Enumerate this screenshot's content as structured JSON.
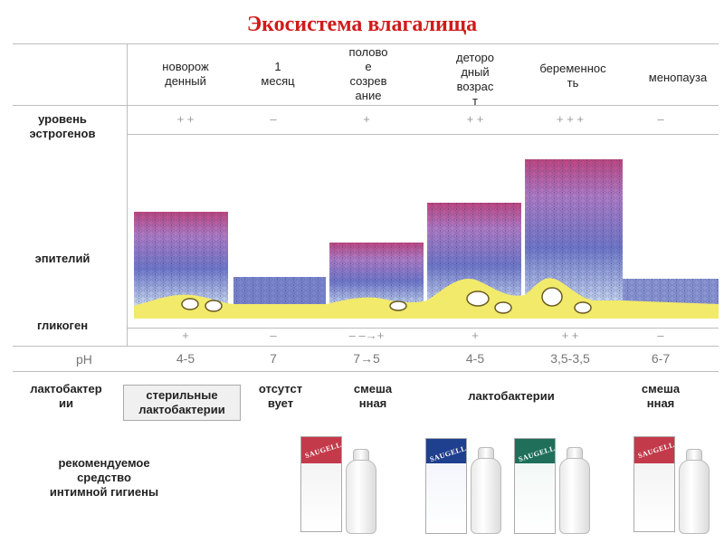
{
  "title": "Экосистема влагалища",
  "stages": [
    {
      "label": "новорож\nденный"
    },
    {
      "label": "1\nмесяц"
    },
    {
      "label": "полово\nе\nсозрев\nание"
    },
    {
      "label": "детoро\nдный\nвозрас\nт"
    },
    {
      "label": "беременнос\nть"
    },
    {
      "label": "менопауза"
    }
  ],
  "rows": {
    "estrogen": "уровень\nэстрогенов",
    "epithelium": "эпителий",
    "glycogen": "гликоген",
    "ph": "pH",
    "lactobacilli": "лактобактер\nии",
    "recommended": "рекомендуемое\nсредство\nинтимной гигиены"
  },
  "estrogen_levels": [
    "+ +",
    "–",
    "+",
    "+ +",
    "+ + +",
    "–"
  ],
  "glycogen_levels": [
    "+",
    "–",
    "– –→+",
    "+",
    "+ +",
    "–"
  ],
  "ph_values": [
    "4-5",
    "7",
    "7→5",
    "4-5",
    "3,5-3,5",
    "6-7"
  ],
  "bacteria": [
    {
      "label": "стерильные\nлактобактерии"
    },
    {
      "label": "отсутст\nвует"
    },
    {
      "label": "смеша\nнная"
    },
    {
      "label": "лактобактерии"
    },
    {
      "label": "смеша\nнная"
    }
  ],
  "brand": "SAUGELLA",
  "colors": {
    "title": "#d11a1a",
    "glycogen": "#f2ea6a",
    "epithelium_top": "#c2467e",
    "epithelium_bottom": "#5a63b8"
  }
}
